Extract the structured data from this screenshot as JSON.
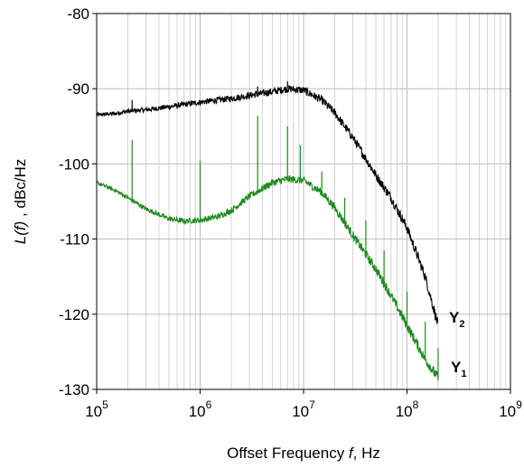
{
  "chart_data": {
    "type": "line",
    "title": "",
    "xlabel": {
      "symbol": "L",
      "pre": "Offset Frequency ",
      "var": "f",
      "post": ", Hz"
    },
    "ylabel": {
      "var": "L(f)",
      "post": " , dBc/Hz"
    },
    "x_scale": "log",
    "xlim": [
      100000,
      1000000000
    ],
    "ylim": [
      -130,
      -80
    ],
    "x_ticks": [
      {
        "base": "10",
        "exp": "5",
        "value": 100000
      },
      {
        "base": "10",
        "exp": "6",
        "value": 1000000
      },
      {
        "base": "10",
        "exp": "7",
        "value": 10000000
      },
      {
        "base": "10",
        "exp": "8",
        "value": 100000000
      },
      {
        "base": "10",
        "exp": "9",
        "value": 1000000000
      }
    ],
    "y_ticks": [
      "-80",
      "-90",
      "-100",
      "-110",
      "-120",
      "-130"
    ],
    "grid": true,
    "series": [
      {
        "name": "Y2",
        "label_main": "Y",
        "label_sub": "2",
        "color": "#000000",
        "x": [
          100000,
          150000,
          200000,
          300000,
          500000,
          700000,
          1000000,
          1500000,
          2000000,
          3000000,
          5000000,
          7000000,
          10000000,
          15000000,
          20000000,
          30000000,
          50000000,
          70000000,
          100000000,
          150000000,
          200000000
        ],
        "y": [
          -93.5,
          -93.3,
          -93.0,
          -92.8,
          -92.4,
          -92.1,
          -91.8,
          -91.5,
          -91.3,
          -90.9,
          -90.4,
          -90.0,
          -90.2,
          -91.5,
          -93.2,
          -96.5,
          -101.5,
          -104.5,
          -108.5,
          -115.0,
          -121.5
        ],
        "spikes": [
          {
            "x": 220000,
            "y": -91.5
          },
          {
            "x": 3600000,
            "y": -89.7
          },
          {
            "x": 7000000,
            "y": -89.0
          }
        ]
      },
      {
        "name": "Y1",
        "label_main": "Y",
        "label_sub": "1",
        "color": "#1e8a1e",
        "x": [
          100000,
          150000,
          200000,
          300000,
          500000,
          700000,
          1000000,
          1500000,
          2000000,
          3000000,
          5000000,
          7000000,
          10000000,
          15000000,
          20000000,
          30000000,
          50000000,
          70000000,
          100000000,
          150000000,
          200000000
        ],
        "y": [
          -102.5,
          -103.5,
          -104.5,
          -106.0,
          -107.3,
          -107.6,
          -107.5,
          -107.0,
          -106.2,
          -104.3,
          -102.5,
          -102.0,
          -102.2,
          -103.8,
          -105.8,
          -109.5,
          -114.0,
          -117.5,
          -121.5,
          -126.0,
          -128.5
        ],
        "spikes": [
          {
            "x": 220000,
            "y": -96.8
          },
          {
            "x": 1000000,
            "y": -99.6
          },
          {
            "x": 3600000,
            "y": -93.6
          },
          {
            "x": 7000000,
            "y": -95.0
          },
          {
            "x": 9300000,
            "y": -97.5
          },
          {
            "x": 15000000,
            "y": -101.0
          },
          {
            "x": 25000000,
            "y": -104.5
          },
          {
            "x": 40000000,
            "y": -107.5
          },
          {
            "x": 60000000,
            "y": -111.5
          },
          {
            "x": 100000000,
            "y": -117.0
          },
          {
            "x": 150000000,
            "y": -121.0
          },
          {
            "x": 200000000,
            "y": -124.5
          }
        ]
      }
    ]
  }
}
